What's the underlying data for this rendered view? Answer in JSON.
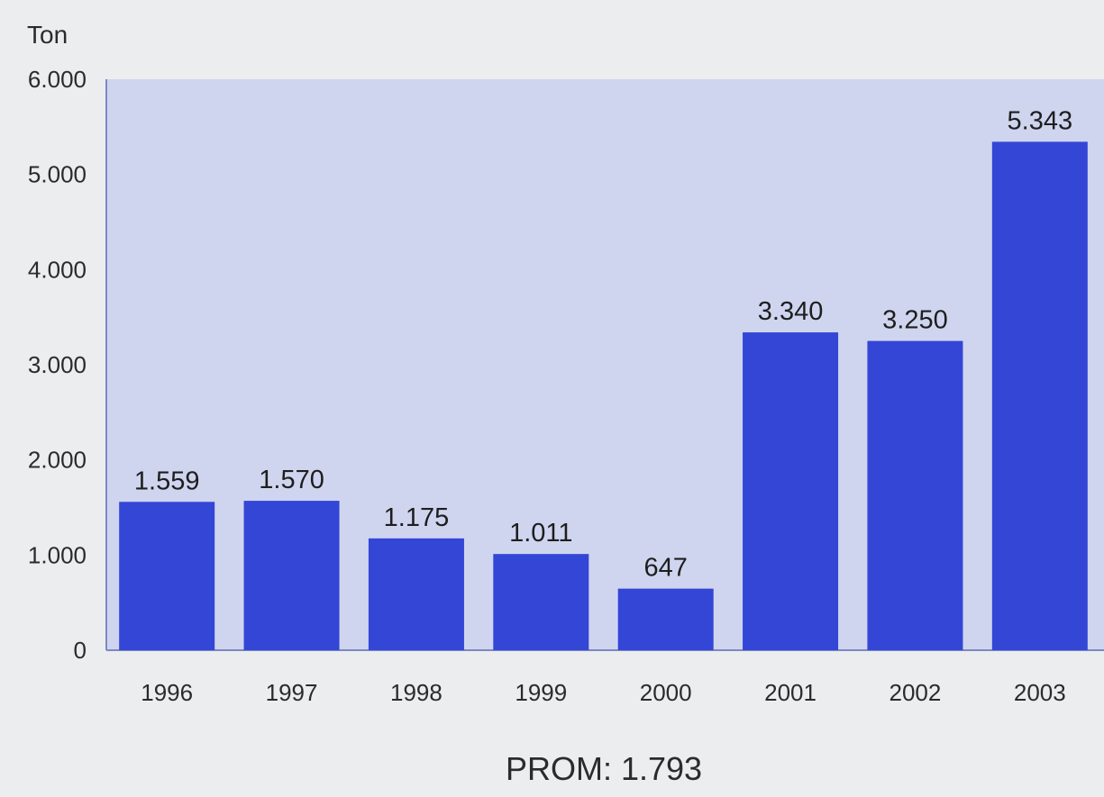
{
  "chart_data": {
    "type": "bar",
    "categories": [
      "1996",
      "1997",
      "1998",
      "1999",
      "2000",
      "2001",
      "2002",
      "2003"
    ],
    "values": [
      1559,
      1570,
      1175,
      1011,
      647,
      3340,
      3250,
      5343
    ],
    "value_labels": [
      "1.559",
      "1.570",
      "1.175",
      "1.011",
      "647",
      "3.340",
      "3.250",
      "5.343"
    ],
    "y_ticks": [
      0,
      1000,
      2000,
      3000,
      4000,
      5000,
      6000
    ],
    "y_tick_labels": [
      "0",
      "1.000",
      "2.000",
      "3.000",
      "4.000",
      "5.000",
      "6.000"
    ],
    "ylim": [
      0,
      6000
    ],
    "unit_label": "Ton",
    "footer": "PROM: 1.793",
    "grid": false,
    "colors": {
      "bar": "#3346d6",
      "plot_bg": "#cfd5ef",
      "page_bg": "#ecedef",
      "axis": "#7d88c2"
    }
  }
}
